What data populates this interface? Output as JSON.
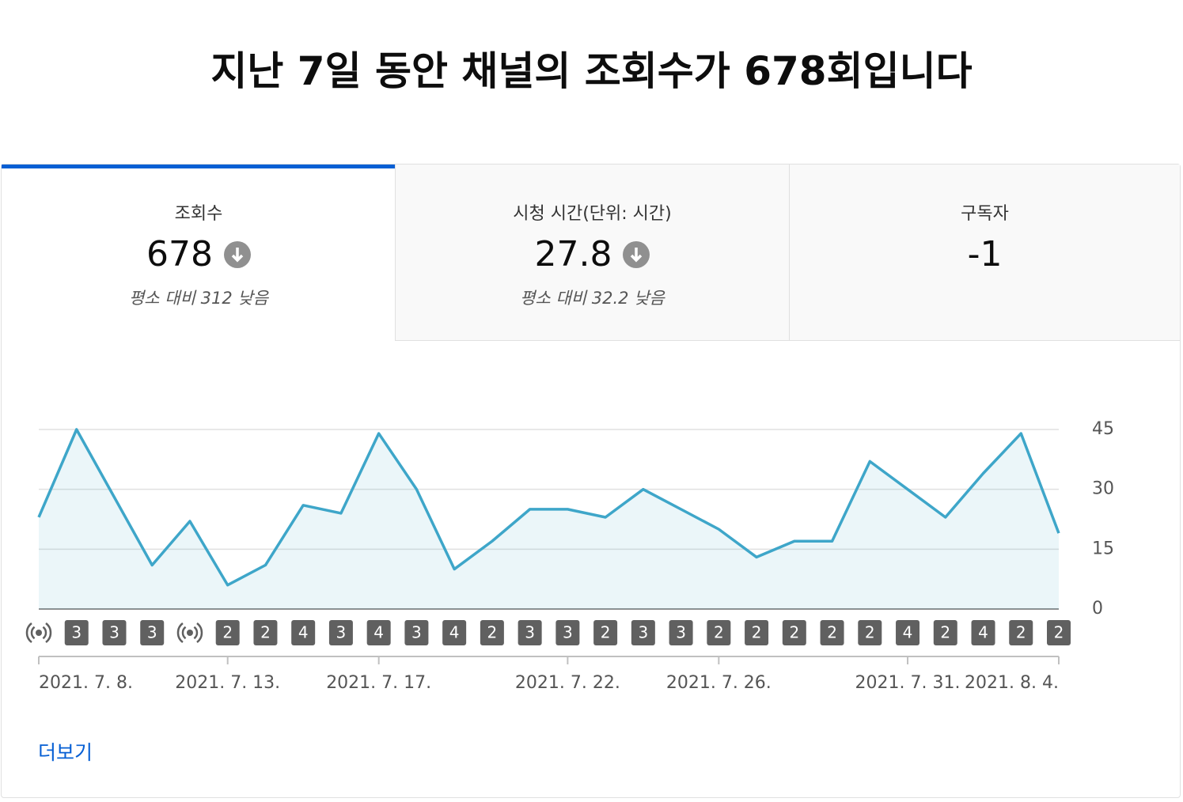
{
  "header": {
    "title": "지난 7일 동안 채널의 조회수가 678회입니다"
  },
  "tabs": [
    {
      "label": "조회수",
      "value": "678",
      "comparison": "평소 대비 312 낮음"
    },
    {
      "label": "시청 시간(단위: 시간)",
      "value": "27.8",
      "comparison": "평소 대비 32.2 낮음"
    },
    {
      "label": "구독자",
      "value": "-1"
    }
  ],
  "chart_data": {
    "type": "line",
    "categories": [
      "2021. 7. 8.",
      null,
      null,
      null,
      null,
      "2021. 7. 13.",
      null,
      null,
      null,
      "2021. 7. 17.",
      null,
      null,
      null,
      null,
      "2021. 7. 22.",
      null,
      null,
      null,
      "2021. 7. 26.",
      null,
      null,
      null,
      null,
      "2021. 7. 31.",
      null,
      null,
      null,
      "2021. 8. 4."
    ],
    "series": [
      {
        "name": "조회수",
        "color": "#3ea6c9",
        "values": [
          23,
          45,
          28,
          11,
          22,
          6,
          11,
          26,
          24,
          44,
          30,
          10,
          17,
          25,
          25,
          23,
          30,
          25,
          20,
          13,
          17,
          17,
          37,
          30,
          23,
          34,
          44,
          19
        ]
      }
    ],
    "badges": [
      null,
      "3",
      "3",
      "3",
      null,
      "2",
      "2",
      "4",
      "3",
      "4",
      "3",
      "4",
      "2",
      "3",
      "3",
      "2",
      "3",
      "3",
      "2",
      "2",
      "2",
      "2",
      "2",
      "4",
      "2",
      "4",
      "2",
      "2"
    ],
    "ylim": [
      0,
      45
    ],
    "yticks": [
      0,
      15,
      30,
      45
    ],
    "grid": true
  },
  "footer": {
    "link": "더보기"
  }
}
